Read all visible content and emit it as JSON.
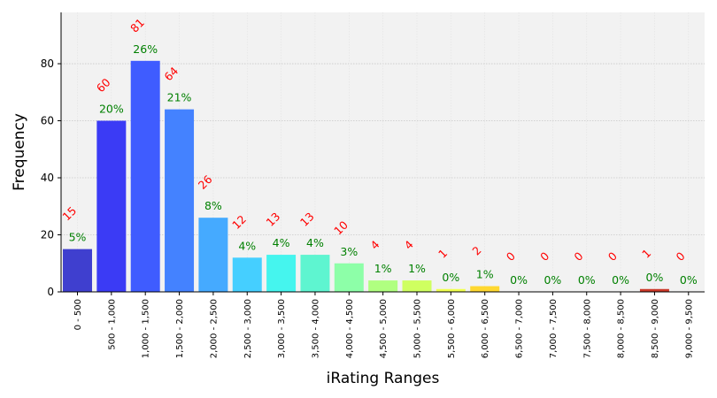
{
  "chart_data": {
    "type": "bar",
    "xlabel": "iRating Ranges",
    "ylabel": "Frequency",
    "ylim": [
      0,
      98
    ],
    "yticks": [
      0,
      20,
      40,
      60,
      80
    ],
    "grid": true,
    "categories": [
      "0 - 500",
      "500 - 1,000",
      "1,000 - 1,500",
      "1,500 - 2,000",
      "2,000 - 2,500",
      "2,500 - 3,000",
      "3,000 - 3,500",
      "3,500 - 4,000",
      "4,000 - 4,500",
      "4,500 - 5,000",
      "5,000 - 5,500",
      "5,500 - 6,000",
      "6,000 - 6,500",
      "6,500 - 7,000",
      "7,000 - 7,500",
      "7,500 - 8,000",
      "8,000 - 8,500",
      "8,500 - 9,000",
      "9,000 - 9,500"
    ],
    "values": [
      15,
      60,
      81,
      64,
      26,
      12,
      13,
      13,
      10,
      4,
      4,
      1,
      2,
      0,
      0,
      0,
      0,
      1,
      0
    ],
    "count_labels": [
      "15",
      "60",
      "81",
      "64",
      "26",
      "12",
      "13",
      "13",
      "10",
      "4",
      "4",
      "1",
      "2",
      "0",
      "0",
      "0",
      "0",
      "1",
      "0"
    ],
    "percent_labels": [
      "5%",
      "20%",
      "26%",
      "21%",
      "8%",
      "4%",
      "4%",
      "4%",
      "3%",
      "1%",
      "1%",
      "0%",
      "1%",
      "0%",
      "0%",
      "0%",
      "0%",
      "0%",
      "0%"
    ],
    "colors": [
      "#3f3fcf",
      "#3b3bf5",
      "#3f5cff",
      "#4482ff",
      "#45aaff",
      "#45cfff",
      "#45f5ee",
      "#5ef5d0",
      "#8dffa8",
      "#b0ff80",
      "#cfff60",
      "#f0ff50",
      "#ffd830",
      "#ffb020",
      "#ff8a18",
      "#ff6010",
      "#f03a10",
      "#cc3a2a",
      "#a82020"
    ],
    "plot_background": "#f2f2f2",
    "count_label_color": "#ff0000",
    "percent_label_color": "#008000"
  }
}
